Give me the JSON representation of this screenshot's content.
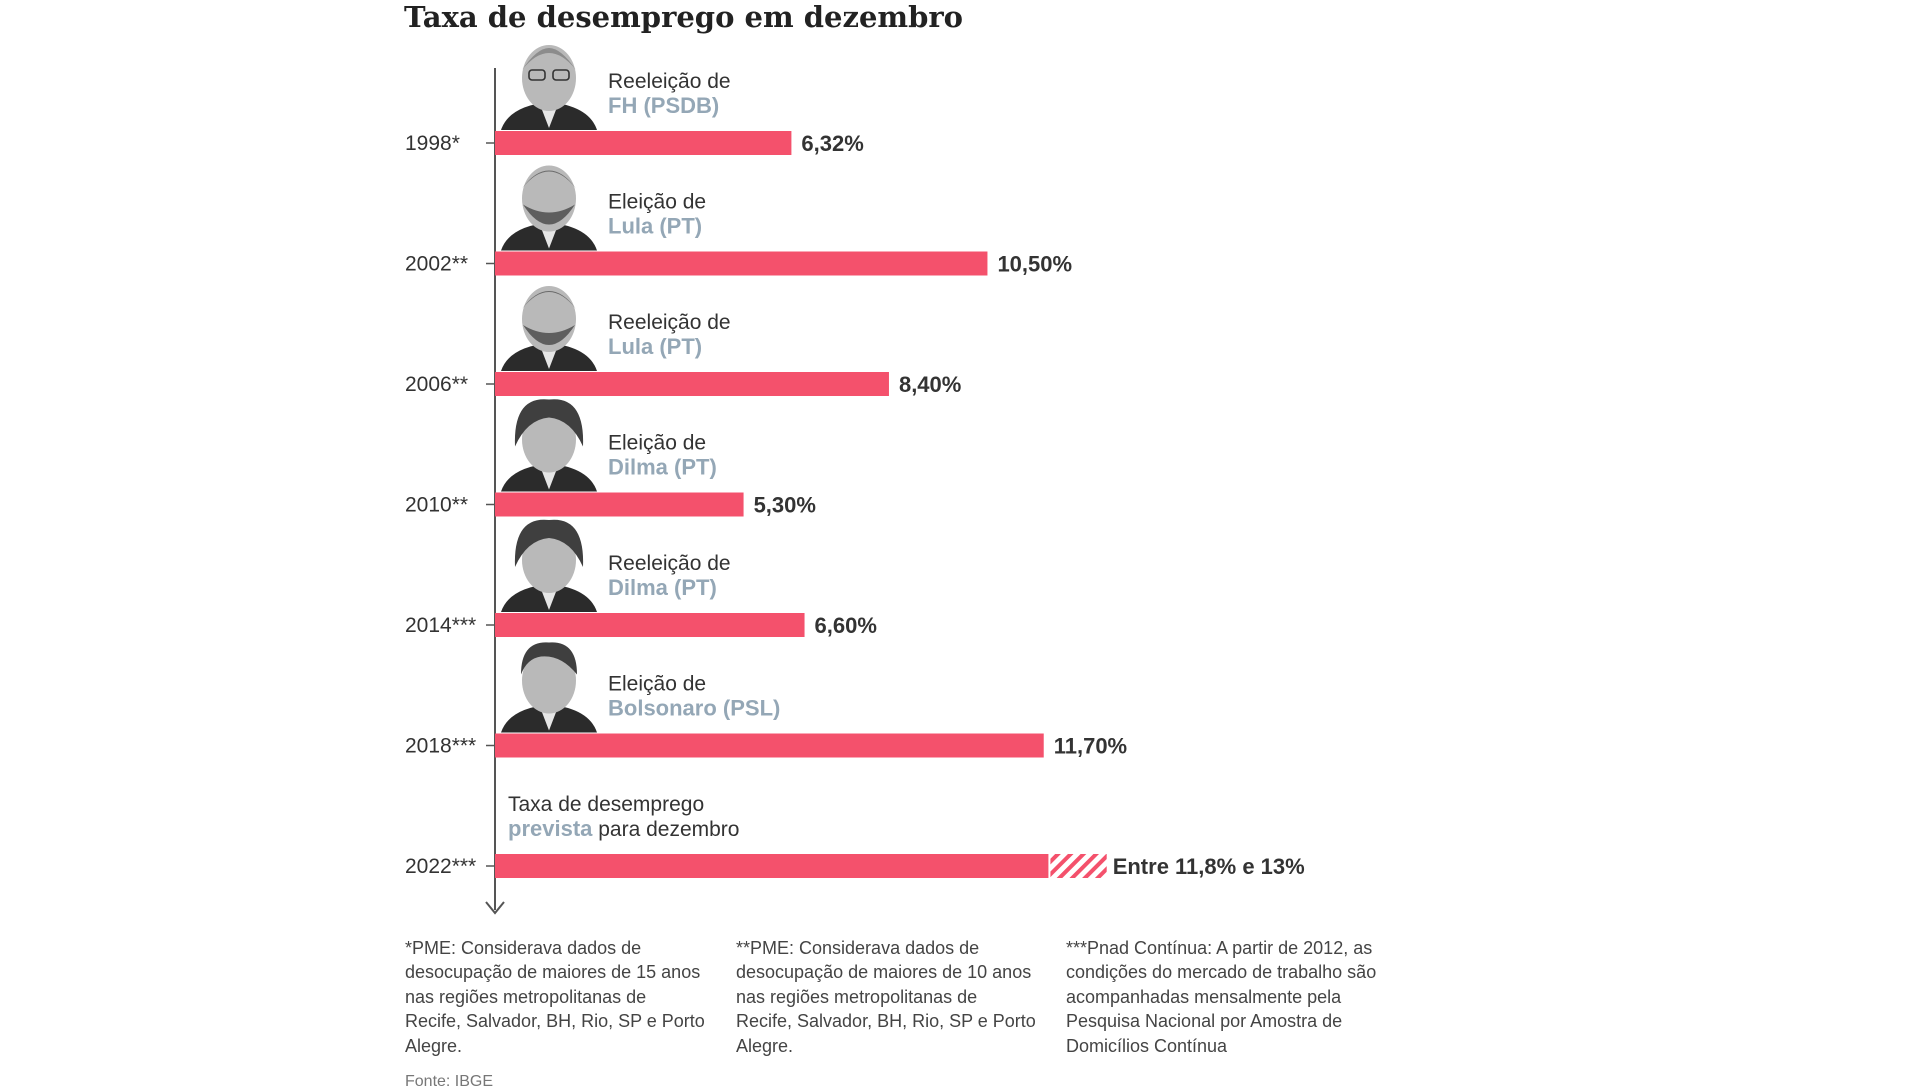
{
  "chart_data": {
    "type": "bar",
    "orientation": "horizontal",
    "title": "Taxa de desemprego em dezembro",
    "categories": [
      "1998*",
      "2002**",
      "2006**",
      "2010**",
      "2014***",
      "2018***",
      "2022***"
    ],
    "values": [
      6.32,
      10.5,
      8.4,
      5.3,
      6.6,
      11.7,
      11.8
    ],
    "forecast_range": {
      "category": "2022***",
      "low": 11.8,
      "high": 13
    },
    "value_labels": [
      "6,32%",
      "10,50%",
      "8,40%",
      "5,30%",
      "6,60%",
      "11,70%",
      "Entre 11,8% e 13%"
    ],
    "annotations": [
      {
        "category": "1998*",
        "line1": "Reeleição de",
        "line2": "FH (PSDB)",
        "line2_rest": "",
        "portrait": "fh-portrait"
      },
      {
        "category": "2002**",
        "line1": "Eleição de",
        "line2": "Lula (PT)",
        "line2_rest": "",
        "portrait": "lula-portrait"
      },
      {
        "category": "2006**",
        "line1": "Reeleição de",
        "line2": "Lula (PT)",
        "line2_rest": "",
        "portrait": "lula-portrait"
      },
      {
        "category": "2010**",
        "line1": "Eleição de",
        "line2": "Dilma (PT)",
        "line2_rest": "",
        "portrait": "dilma-portrait"
      },
      {
        "category": "2014***",
        "line1": "Reeleição de",
        "line2": "Dilma (PT)",
        "line2_rest": "",
        "portrait": "dilma-portrait"
      },
      {
        "category": "2018***",
        "line1": "Eleição de",
        "line2": "Bolsonaro (PSL)",
        "line2_rest": "",
        "portrait": "bolsonaro-portrait"
      },
      {
        "category": "2022***",
        "line1": "Taxa de desemprego",
        "line2": "prevista",
        "line2_rest": " para dezembro",
        "portrait": ""
      }
    ],
    "xlim": [
      0,
      13
    ],
    "grid": false,
    "legend": "none",
    "colors": {
      "bar": "#f4516c",
      "highlight": "#94a7b6",
      "axis": "#555555"
    }
  },
  "footnotes": [
    "*PME: Considerava dados de desocupação de maiores de 15 anos nas regiões metropolitanas de Recife, Salvador, BH, Rio, SP e Porto Alegre.",
    "**PME: Considerava dados de desocupação de maiores de 10 anos nas regiões metropolitanas de Recife, Salvador, BH, Rio, SP e Porto Alegre.",
    "***Pnad Contínua: A partir de 2012, as condições do mercado de trabalho são acompanhadas mensalmente pela Pesquisa Nacional por Amostra de Domicílios Contínua"
  ],
  "source": "Fonte: IBGE"
}
